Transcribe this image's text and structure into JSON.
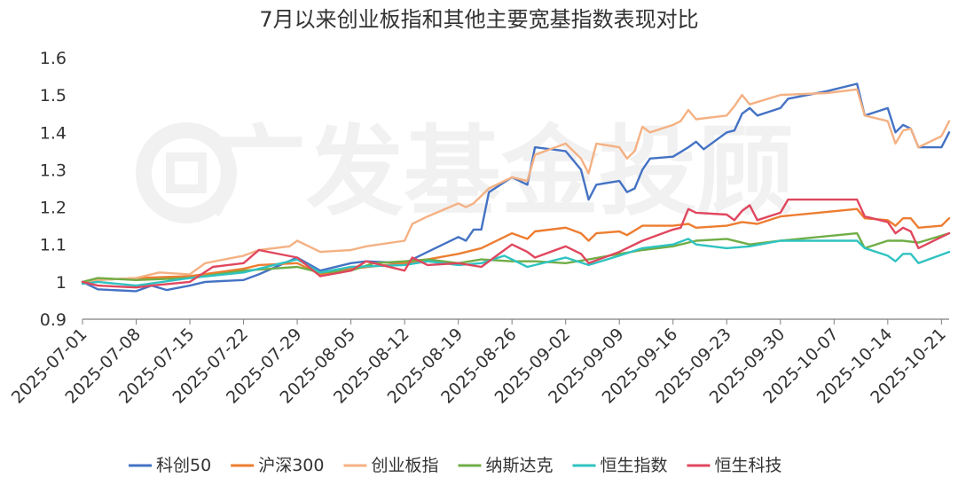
{
  "chart_data": {
    "type": "line",
    "title": "7月以来创业板指和其他主要宽基指数表现对比",
    "watermark": "广发基金投顾",
    "xlabel": "",
    "ylabel": "",
    "ylim": [
      0.9,
      1.6
    ],
    "yticks": [
      "0.9",
      "1",
      "1.1",
      "1.2",
      "1.3",
      "1.4",
      "1.5",
      "1.6"
    ],
    "x_range": [
      "2025-07-01",
      "2025-10-22"
    ],
    "xticks": [
      "2025-07-01",
      "2025-07-08",
      "2025-07-15",
      "2025-07-22",
      "2025-07-29",
      "2025-08-05",
      "2025-08-12",
      "2025-08-19",
      "2025-08-26",
      "2025-09-02",
      "2025-09-09",
      "2025-09-16",
      "2025-09-23",
      "2025-09-30",
      "2025-10-07",
      "2025-10-14",
      "2025-10-21"
    ],
    "legend_position": "bottom",
    "grid": false,
    "series": [
      {
        "name": "科创50",
        "color": "#4472C4",
        "points": [
          [
            "2025-07-01",
            1.0
          ],
          [
            "2025-07-03",
            0.98
          ],
          [
            "2025-07-08",
            0.975
          ],
          [
            "2025-07-10",
            0.99
          ],
          [
            "2025-07-12",
            0.978
          ],
          [
            "2025-07-15",
            0.99
          ],
          [
            "2025-07-17",
            1.0
          ],
          [
            "2025-07-22",
            1.005
          ],
          [
            "2025-07-24",
            1.02
          ],
          [
            "2025-07-29",
            1.065
          ],
          [
            "2025-08-01",
            1.03
          ],
          [
            "2025-08-05",
            1.05
          ],
          [
            "2025-08-07",
            1.055
          ],
          [
            "2025-08-12",
            1.05
          ],
          [
            "2025-08-15",
            1.08
          ],
          [
            "2025-08-19",
            1.12
          ],
          [
            "2025-08-20",
            1.11
          ],
          [
            "2025-08-21",
            1.14
          ],
          [
            "2025-08-22",
            1.14
          ],
          [
            "2025-08-23",
            1.24
          ],
          [
            "2025-08-26",
            1.28
          ],
          [
            "2025-08-28",
            1.26
          ],
          [
            "2025-08-29",
            1.36
          ],
          [
            "2025-09-02",
            1.35
          ],
          [
            "2025-09-04",
            1.3
          ],
          [
            "2025-09-05",
            1.22
          ],
          [
            "2025-09-06",
            1.26
          ],
          [
            "2025-09-09",
            1.27
          ],
          [
            "2025-09-10",
            1.24
          ],
          [
            "2025-09-11",
            1.25
          ],
          [
            "2025-09-12",
            1.3
          ],
          [
            "2025-09-13",
            1.33
          ],
          [
            "2025-09-16",
            1.335
          ],
          [
            "2025-09-18",
            1.36
          ],
          [
            "2025-09-19",
            1.375
          ],
          [
            "2025-09-20",
            1.355
          ],
          [
            "2025-09-23",
            1.4
          ],
          [
            "2025-09-24",
            1.405
          ],
          [
            "2025-09-25",
            1.45
          ],
          [
            "2025-09-26",
            1.465
          ],
          [
            "2025-09-27",
            1.445
          ],
          [
            "2025-09-30",
            1.465
          ],
          [
            "2025-10-01",
            1.49
          ],
          [
            "2025-10-06",
            1.51
          ],
          [
            "2025-10-10",
            1.53
          ],
          [
            "2025-10-11",
            1.445
          ],
          [
            "2025-10-14",
            1.465
          ],
          [
            "2025-10-15",
            1.4
          ],
          [
            "2025-10-16",
            1.42
          ],
          [
            "2025-10-17",
            1.41
          ],
          [
            "2025-10-18",
            1.36
          ],
          [
            "2025-10-21",
            1.36
          ],
          [
            "2025-10-22",
            1.4
          ]
        ]
      },
      {
        "name": "沪深300",
        "color": "#ED7D31",
        "points": [
          [
            "2025-07-01",
            1.0
          ],
          [
            "2025-07-03",
            1.005
          ],
          [
            "2025-07-08",
            1.01
          ],
          [
            "2025-07-15",
            1.015
          ],
          [
            "2025-07-22",
            1.035
          ],
          [
            "2025-07-24",
            1.045
          ],
          [
            "2025-07-29",
            1.05
          ],
          [
            "2025-08-01",
            1.02
          ],
          [
            "2025-08-05",
            1.035
          ],
          [
            "2025-08-12",
            1.05
          ],
          [
            "2025-08-15",
            1.06
          ],
          [
            "2025-08-19",
            1.075
          ],
          [
            "2025-08-22",
            1.09
          ],
          [
            "2025-08-26",
            1.13
          ],
          [
            "2025-08-28",
            1.115
          ],
          [
            "2025-08-29",
            1.135
          ],
          [
            "2025-09-02",
            1.145
          ],
          [
            "2025-09-04",
            1.13
          ],
          [
            "2025-09-05",
            1.11
          ],
          [
            "2025-09-06",
            1.13
          ],
          [
            "2025-09-09",
            1.135
          ],
          [
            "2025-09-10",
            1.125
          ],
          [
            "2025-09-12",
            1.15
          ],
          [
            "2025-09-16",
            1.15
          ],
          [
            "2025-09-18",
            1.155
          ],
          [
            "2025-09-19",
            1.145
          ],
          [
            "2025-09-23",
            1.15
          ],
          [
            "2025-09-25",
            1.16
          ],
          [
            "2025-09-27",
            1.155
          ],
          [
            "2025-09-30",
            1.175
          ],
          [
            "2025-10-10",
            1.195
          ],
          [
            "2025-10-11",
            1.17
          ],
          [
            "2025-10-14",
            1.165
          ],
          [
            "2025-10-15",
            1.15
          ],
          [
            "2025-10-16",
            1.17
          ],
          [
            "2025-10-17",
            1.17
          ],
          [
            "2025-10-18",
            1.145
          ],
          [
            "2025-10-21",
            1.15
          ],
          [
            "2025-10-22",
            1.17
          ]
        ]
      },
      {
        "name": "创业板指",
        "color": "#F4B183",
        "points": [
          [
            "2025-07-01",
            1.0
          ],
          [
            "2025-07-03",
            1.005
          ],
          [
            "2025-07-08",
            1.01
          ],
          [
            "2025-07-11",
            1.025
          ],
          [
            "2025-07-15",
            1.02
          ],
          [
            "2025-07-17",
            1.05
          ],
          [
            "2025-07-22",
            1.07
          ],
          [
            "2025-07-24",
            1.085
          ],
          [
            "2025-07-28",
            1.095
          ],
          [
            "2025-07-29",
            1.11
          ],
          [
            "2025-08-01",
            1.08
          ],
          [
            "2025-08-05",
            1.085
          ],
          [
            "2025-08-07",
            1.095
          ],
          [
            "2025-08-12",
            1.11
          ],
          [
            "2025-08-13",
            1.155
          ],
          [
            "2025-08-15",
            1.175
          ],
          [
            "2025-08-19",
            1.21
          ],
          [
            "2025-08-20",
            1.2
          ],
          [
            "2025-08-21",
            1.21
          ],
          [
            "2025-08-23",
            1.25
          ],
          [
            "2025-08-26",
            1.28
          ],
          [
            "2025-08-28",
            1.27
          ],
          [
            "2025-08-29",
            1.34
          ],
          [
            "2025-09-02",
            1.37
          ],
          [
            "2025-09-04",
            1.33
          ],
          [
            "2025-09-05",
            1.29
          ],
          [
            "2025-09-06",
            1.37
          ],
          [
            "2025-09-09",
            1.36
          ],
          [
            "2025-09-10",
            1.33
          ],
          [
            "2025-09-11",
            1.35
          ],
          [
            "2025-09-12",
            1.415
          ],
          [
            "2025-09-13",
            1.4
          ],
          [
            "2025-09-16",
            1.42
          ],
          [
            "2025-09-17",
            1.43
          ],
          [
            "2025-09-18",
            1.46
          ],
          [
            "2025-09-19",
            1.435
          ],
          [
            "2025-09-23",
            1.445
          ],
          [
            "2025-09-24",
            1.47
          ],
          [
            "2025-09-25",
            1.5
          ],
          [
            "2025-09-26",
            1.475
          ],
          [
            "2025-09-30",
            1.5
          ],
          [
            "2025-10-06",
            1.505
          ],
          [
            "2025-10-10",
            1.515
          ],
          [
            "2025-10-11",
            1.445
          ],
          [
            "2025-10-14",
            1.43
          ],
          [
            "2025-10-15",
            1.37
          ],
          [
            "2025-10-16",
            1.405
          ],
          [
            "2025-10-17",
            1.41
          ],
          [
            "2025-10-18",
            1.36
          ],
          [
            "2025-10-21",
            1.39
          ],
          [
            "2025-10-22",
            1.43
          ]
        ]
      },
      {
        "name": "纳斯达克",
        "color": "#70AD47",
        "points": [
          [
            "2025-07-01",
            1.0
          ],
          [
            "2025-07-03",
            1.01
          ],
          [
            "2025-07-08",
            1.005
          ],
          [
            "2025-07-15",
            1.01
          ],
          [
            "2025-07-22",
            1.03
          ],
          [
            "2025-07-29",
            1.04
          ],
          [
            "2025-08-01",
            1.025
          ],
          [
            "2025-08-05",
            1.03
          ],
          [
            "2025-08-08",
            1.05
          ],
          [
            "2025-08-12",
            1.055
          ],
          [
            "2025-08-15",
            1.06
          ],
          [
            "2025-08-19",
            1.05
          ],
          [
            "2025-08-22",
            1.06
          ],
          [
            "2025-08-26",
            1.055
          ],
          [
            "2025-08-29",
            1.055
          ],
          [
            "2025-09-02",
            1.05
          ],
          [
            "2025-09-05",
            1.06
          ],
          [
            "2025-09-09",
            1.075
          ],
          [
            "2025-09-12",
            1.085
          ],
          [
            "2025-09-16",
            1.095
          ],
          [
            "2025-09-19",
            1.11
          ],
          [
            "2025-09-23",
            1.115
          ],
          [
            "2025-09-26",
            1.1
          ],
          [
            "2025-09-30",
            1.11
          ],
          [
            "2025-10-10",
            1.13
          ],
          [
            "2025-10-11",
            1.09
          ],
          [
            "2025-10-14",
            1.11
          ],
          [
            "2025-10-16",
            1.11
          ],
          [
            "2025-10-18",
            1.105
          ],
          [
            "2025-10-22",
            1.13
          ]
        ]
      },
      {
        "name": "恒生指数",
        "color": "#2FC3C1",
        "points": [
          [
            "2025-07-01",
            0.995
          ],
          [
            "2025-07-03",
            1.0
          ],
          [
            "2025-07-08",
            0.99
          ],
          [
            "2025-07-15",
            1.01
          ],
          [
            "2025-07-22",
            1.025
          ],
          [
            "2025-07-24",
            1.035
          ],
          [
            "2025-07-29",
            1.06
          ],
          [
            "2025-08-01",
            1.025
          ],
          [
            "2025-08-05",
            1.04
          ],
          [
            "2025-08-12",
            1.045
          ],
          [
            "2025-08-15",
            1.055
          ],
          [
            "2025-08-19",
            1.045
          ],
          [
            "2025-08-22",
            1.05
          ],
          [
            "2025-08-25",
            1.07
          ],
          [
            "2025-08-26",
            1.06
          ],
          [
            "2025-08-28",
            1.04
          ],
          [
            "2025-09-02",
            1.065
          ],
          [
            "2025-09-05",
            1.045
          ],
          [
            "2025-09-09",
            1.07
          ],
          [
            "2025-09-12",
            1.09
          ],
          [
            "2025-09-16",
            1.1
          ],
          [
            "2025-09-18",
            1.115
          ],
          [
            "2025-09-19",
            1.1
          ],
          [
            "2025-09-23",
            1.09
          ],
          [
            "2025-09-26",
            1.095
          ],
          [
            "2025-09-30",
            1.11
          ],
          [
            "2025-10-10",
            1.11
          ],
          [
            "2025-10-11",
            1.09
          ],
          [
            "2025-10-14",
            1.07
          ],
          [
            "2025-10-15",
            1.055
          ],
          [
            "2025-10-16",
            1.075
          ],
          [
            "2025-10-17",
            1.075
          ],
          [
            "2025-10-18",
            1.05
          ],
          [
            "2025-10-22",
            1.08
          ]
        ]
      },
      {
        "name": "恒生科技",
        "color": "#E0475E",
        "points": [
          [
            "2025-07-01",
            1.0
          ],
          [
            "2025-07-03",
            0.99
          ],
          [
            "2025-07-08",
            0.985
          ],
          [
            "2025-07-10",
            0.99
          ],
          [
            "2025-07-15",
            1.0
          ],
          [
            "2025-07-18",
            1.04
          ],
          [
            "2025-07-22",
            1.05
          ],
          [
            "2025-07-24",
            1.085
          ],
          [
            "2025-07-29",
            1.065
          ],
          [
            "2025-08-01",
            1.015
          ],
          [
            "2025-08-05",
            1.03
          ],
          [
            "2025-08-07",
            1.055
          ],
          [
            "2025-08-12",
            1.03
          ],
          [
            "2025-08-13",
            1.065
          ],
          [
            "2025-08-15",
            1.045
          ],
          [
            "2025-08-19",
            1.05
          ],
          [
            "2025-08-22",
            1.04
          ],
          [
            "2025-08-26",
            1.1
          ],
          [
            "2025-08-28",
            1.08
          ],
          [
            "2025-08-29",
            1.065
          ],
          [
            "2025-09-02",
            1.095
          ],
          [
            "2025-09-04",
            1.075
          ],
          [
            "2025-09-05",
            1.05
          ],
          [
            "2025-09-09",
            1.08
          ],
          [
            "2025-09-12",
            1.11
          ],
          [
            "2025-09-16",
            1.14
          ],
          [
            "2025-09-17",
            1.145
          ],
          [
            "2025-09-18",
            1.195
          ],
          [
            "2025-09-19",
            1.185
          ],
          [
            "2025-09-23",
            1.18
          ],
          [
            "2025-09-24",
            1.165
          ],
          [
            "2025-09-25",
            1.19
          ],
          [
            "2025-09-26",
            1.205
          ],
          [
            "2025-09-27",
            1.165
          ],
          [
            "2025-09-30",
            1.185
          ],
          [
            "2025-10-01",
            1.22
          ],
          [
            "2025-10-10",
            1.22
          ],
          [
            "2025-10-11",
            1.175
          ],
          [
            "2025-10-14",
            1.16
          ],
          [
            "2025-10-15",
            1.13
          ],
          [
            "2025-10-16",
            1.145
          ],
          [
            "2025-10-17",
            1.135
          ],
          [
            "2025-10-18",
            1.09
          ],
          [
            "2025-10-22",
            1.13
          ]
        ]
      }
    ]
  }
}
